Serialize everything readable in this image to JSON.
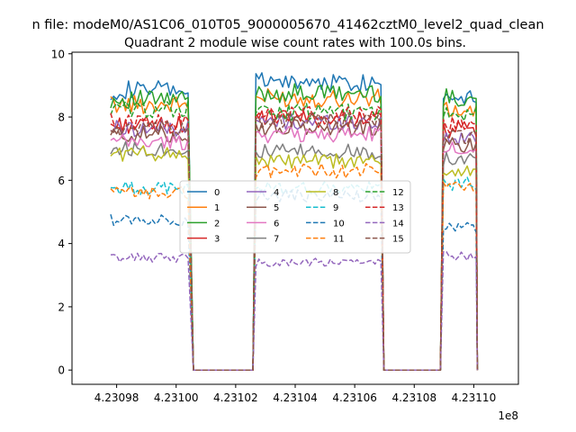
{
  "chart_data": {
    "type": "line",
    "suptitle": "n file: modeM0/AS1C06_010T05_9000005670_41462cztM0_level2_quad_clean",
    "title": "Quadrant 2 module wise count rates with 100.0s bins.",
    "xlabel": "",
    "ylabel": "",
    "x_offset_label": "1e8",
    "xlim": [
      4.230965,
      4.231115
    ],
    "ylim": [
      -0.45,
      10.05
    ],
    "x_ticks": [
      4.23098,
      4.231,
      4.23102,
      4.23104,
      4.23106,
      4.23108,
      4.2311
    ],
    "x_tick_labels": [
      "4.23098",
      "4.23100",
      "4.23102",
      "4.23104",
      "4.23106",
      "4.23108",
      "4.23110"
    ],
    "y_ticks": [
      0,
      2,
      4,
      6,
      8,
      10
    ],
    "y_tick_labels": [
      "0",
      "2",
      "4",
      "6",
      "8",
      "10"
    ],
    "grid": false,
    "legend": {
      "placement": "center",
      "columns": 4
    },
    "segments": [
      {
        "x_start": 4.230978,
        "x_end": 4.2310048,
        "drop_to": 4.2310058
      },
      {
        "x_start": 4.2310268,
        "x_end": 4.2310688,
        "drop_to": 4.2310698
      },
      {
        "x_start": 4.2310898,
        "x_end": 4.2311008,
        "drop_to": 4.2311012
      }
    ],
    "gap_x": [
      4.2310058,
      4.2310258,
      4.2310698,
      4.2310888
    ],
    "series": [
      {
        "name": "0",
        "color": "#1f77b4",
        "dash": "solid",
        "levels": [
          8.85,
          9.1,
          8.7
        ]
      },
      {
        "name": "1",
        "color": "#ff7f0e",
        "dash": "solid",
        "levels": [
          8.4,
          8.6,
          8.2
        ]
      },
      {
        "name": "2",
        "color": "#2ca02c",
        "dash": "solid",
        "levels": [
          8.55,
          8.75,
          8.6
        ]
      },
      {
        "name": "3",
        "color": "#d62728",
        "dash": "solid",
        "levels": [
          7.75,
          7.95,
          7.6
        ]
      },
      {
        "name": "4",
        "color": "#9467bd",
        "dash": "solid",
        "levels": [
          7.65,
          7.85,
          7.3
        ]
      },
      {
        "name": "5",
        "color": "#8c564b",
        "dash": "solid",
        "levels": [
          7.45,
          7.65,
          7.1
        ]
      },
      {
        "name": "6",
        "color": "#e377c2",
        "dash": "solid",
        "levels": [
          7.2,
          7.45,
          7.0
        ]
      },
      {
        "name": "7",
        "color": "#7f7f7f",
        "dash": "solid",
        "levels": [
          7.0,
          6.9,
          6.7
        ]
      },
      {
        "name": "8",
        "color": "#bcbd22",
        "dash": "solid",
        "levels": [
          6.85,
          6.6,
          6.3
        ]
      },
      {
        "name": "9",
        "color": "#17becf",
        "dash": "dashed",
        "levels": [
          5.75,
          5.75,
          5.9
        ]
      },
      {
        "name": "10",
        "color": "#1f77b4",
        "dash": "dashed",
        "levels": [
          4.75,
          5.5,
          4.5
        ]
      },
      {
        "name": "11",
        "color": "#ff7f0e",
        "dash": "dashed",
        "levels": [
          5.6,
          6.3,
          5.8
        ]
      },
      {
        "name": "12",
        "color": "#2ca02c",
        "dash": "dashed",
        "levels": [
          8.25,
          8.15,
          8.1
        ]
      },
      {
        "name": "13",
        "color": "#d62728",
        "dash": "dashed",
        "levels": [
          7.85,
          8.05,
          7.75
        ]
      },
      {
        "name": "14",
        "color": "#9467bd",
        "dash": "dashed",
        "levels": [
          3.55,
          3.4,
          3.6
        ]
      },
      {
        "name": "15",
        "color": "#8c564b",
        "dash": "dashed",
        "levels": [
          7.6,
          7.9,
          7.4
        ]
      }
    ]
  }
}
